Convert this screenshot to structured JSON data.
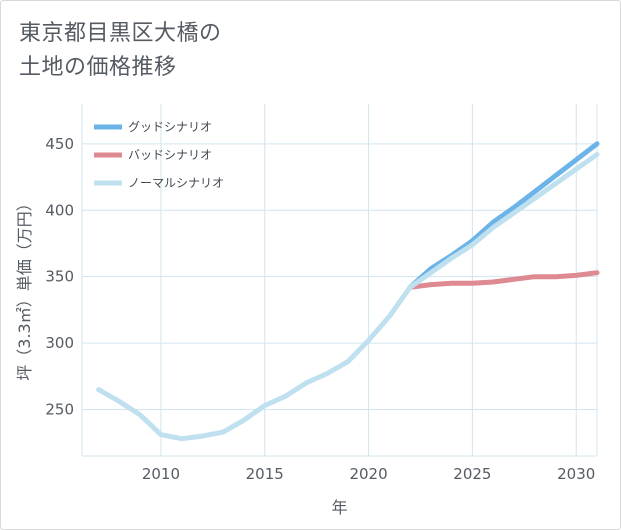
{
  "title_line1": "東京都目黒区大橋の",
  "title_line2": "土地の価格推移",
  "chart_data": {
    "type": "line",
    "title": "東京都目黒区大橋の土地の価格推移",
    "xlabel": "年",
    "ylabel": "坪（3.3㎡）単価（万円）",
    "xlim": [
      2006.2,
      2031
    ],
    "ylim": [
      215,
      480
    ],
    "xticks": [
      2010,
      2015,
      2020,
      2025,
      2030
    ],
    "yticks": [
      250,
      300,
      350,
      400,
      450
    ],
    "grid": true,
    "legend_position": "top-left",
    "series": [
      {
        "name": "グッドシナリオ",
        "color": "#6cb3e8",
        "x": [
          2022,
          2023,
          2024,
          2025,
          2026,
          2027,
          2028,
          2029,
          2030,
          2031
        ],
        "values": [
          342,
          356,
          366,
          377,
          391,
          402,
          414,
          426,
          438,
          450
        ]
      },
      {
        "name": "バッドシナリオ",
        "color": "#dd8a92",
        "x": [
          2022,
          2023,
          2024,
          2025,
          2026,
          2027,
          2028,
          2029,
          2030,
          2031
        ],
        "values": [
          342,
          344,
          345,
          345,
          346,
          348,
          350,
          350,
          351,
          353
        ]
      },
      {
        "name": "ノーマルシナリオ",
        "color": "#bfe0ef",
        "x": [
          2007,
          2008,
          2009,
          2010,
          2011,
          2012,
          2013,
          2014,
          2015,
          2016,
          2017,
          2018,
          2019,
          2020,
          2021,
          2022,
          2023,
          2024,
          2025,
          2026,
          2027,
          2028,
          2029,
          2030,
          2031
        ],
        "values": [
          265,
          256,
          246,
          231,
          228,
          230,
          233,
          242,
          253,
          260,
          270,
          277,
          286,
          302,
          320,
          342,
          353,
          364,
          374,
          387,
          398,
          409,
          420,
          431,
          442
        ]
      }
    ]
  }
}
